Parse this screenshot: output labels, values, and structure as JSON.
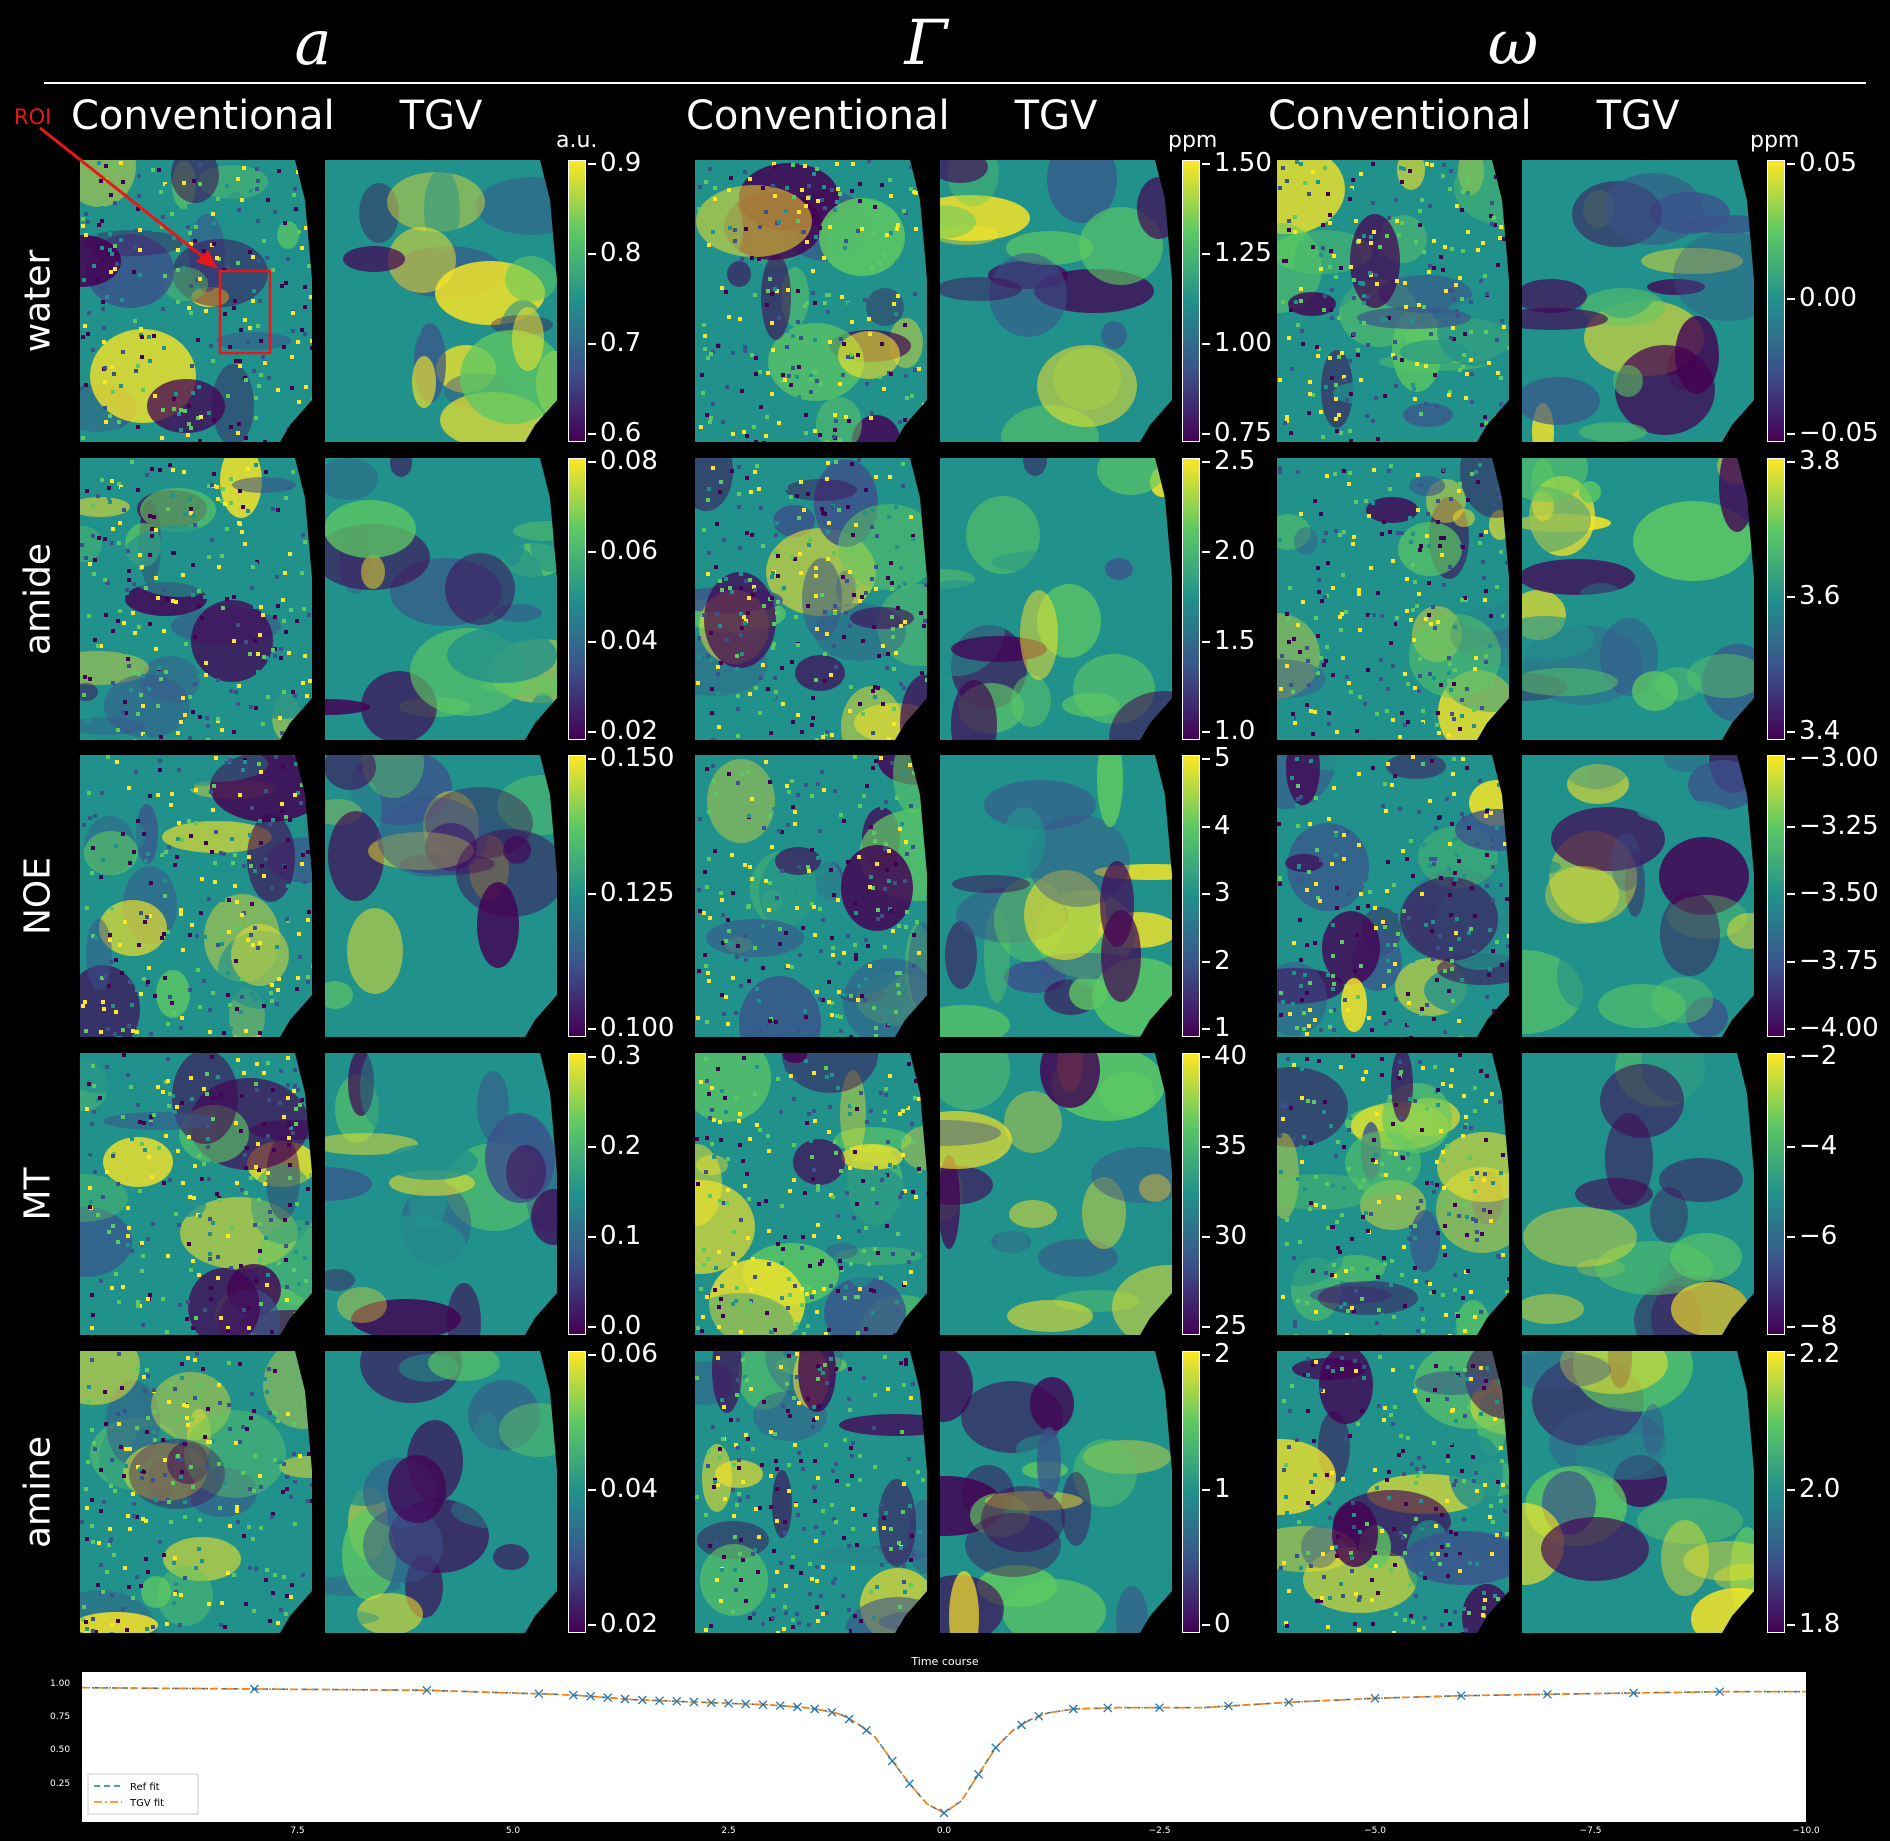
{
  "groups": [
    {
      "symbol": "a",
      "unit": "a.u."
    },
    {
      "symbol": "Γ",
      "unit": "ppm"
    },
    {
      "symbol": "ω",
      "unit": "ppm"
    }
  ],
  "column_headers": [
    "Conventional",
    "TGV"
  ],
  "roi_label": "ROI",
  "rows": [
    "water",
    "amide",
    "NOE",
    "MT",
    "amine"
  ],
  "colorbars": [
    [
      [
        "0.9",
        "0.8",
        "0.7",
        "0.6"
      ],
      [
        "1.50",
        "1.25",
        "1.00",
        "0.75"
      ],
      [
        "0.05",
        "0.00",
        "−0.05"
      ]
    ],
    [
      [
        "0.08",
        "0.06",
        "0.04",
        "0.02"
      ],
      [
        "2.5",
        "2.0",
        "1.5",
        "1.0"
      ],
      [
        "3.8",
        "3.6",
        "3.4"
      ]
    ],
    [
      [
        "0.150",
        "0.125",
        "0.100"
      ],
      [
        "5",
        "4",
        "3",
        "2",
        "1"
      ],
      [
        "−3.00",
        "−3.25",
        "−3.50",
        "−3.75",
        "−4.00"
      ]
    ],
    [
      [
        "0.3",
        "0.2",
        "0.1",
        "0.0"
      ],
      [
        "40",
        "35",
        "30",
        "25"
      ],
      [
        "−2",
        "−4",
        "−6",
        "−8"
      ]
    ],
    [
      [
        "0.06",
        "0.04",
        "0.02"
      ],
      [
        "2",
        "1",
        "0"
      ],
      [
        "2.2",
        "2.0",
        "1.8"
      ]
    ]
  ],
  "colormap": [
    "#440154",
    "#3b528b",
    "#21918c",
    "#5ec962",
    "#fde725"
  ],
  "chart_data": {
    "type": "line",
    "title": "Time course",
    "xlim": [
      10,
      -10
    ],
    "ylim": [
      0,
      1.05
    ],
    "x_ticks": [
      "7.5",
      "5.0",
      "2.5",
      "0.0",
      "−2.5",
      "−5.0",
      "−7.5",
      "−10.0"
    ],
    "x_tick_values": [
      7.5,
      5.0,
      2.5,
      0.0,
      -2.5,
      -5.0,
      -7.5,
      -10.0
    ],
    "y_ticks": [
      "1.00",
      "0.75",
      "0.50",
      "0.25"
    ],
    "y_tick_values": [
      1.0,
      0.75,
      0.5,
      0.25
    ],
    "legend_position": "lower-left",
    "series": [
      {
        "name": "Ref fit",
        "style": "dashed",
        "color": "#1f77b4"
      },
      {
        "name": "TGV fit",
        "style": "dashdot",
        "color": "#ff7f0e"
      }
    ],
    "x": [
      10.0,
      8.0,
      6.0,
      5.0,
      4.5,
      4.2,
      4.0,
      3.8,
      3.6,
      3.4,
      3.2,
      3.0,
      2.8,
      2.6,
      2.4,
      2.2,
      2.0,
      1.8,
      1.6,
      1.4,
      1.2,
      1.0,
      0.8,
      0.6,
      0.4,
      0.2,
      0.0,
      -0.2,
      -0.4,
      -0.6,
      -0.8,
      -1.0,
      -1.2,
      -1.5,
      -2.0,
      -2.5,
      -3.0,
      -3.5,
      -4.0,
      -5.0,
      -6.0,
      -7.0,
      -8.0,
      -9.0,
      -10.0
    ],
    "y": [
      0.97,
      0.96,
      0.95,
      0.93,
      0.92,
      0.91,
      0.9,
      0.89,
      0.88,
      0.875,
      0.87,
      0.865,
      0.86,
      0.855,
      0.85,
      0.845,
      0.84,
      0.83,
      0.82,
      0.8,
      0.77,
      0.7,
      0.6,
      0.42,
      0.25,
      0.1,
      0.03,
      0.12,
      0.32,
      0.52,
      0.65,
      0.73,
      0.78,
      0.81,
      0.82,
      0.82,
      0.82,
      0.84,
      0.86,
      0.89,
      0.91,
      0.92,
      0.93,
      0.94,
      0.94
    ],
    "markers_x": [
      8.0,
      6.0,
      4.7,
      4.3,
      4.1,
      3.9,
      3.7,
      3.5,
      3.3,
      3.1,
      2.9,
      2.7,
      2.5,
      2.3,
      2.1,
      1.9,
      1.7,
      1.5,
      1.3,
      1.1,
      0.9,
      0.6,
      0.4,
      0.0,
      -0.4,
      -0.6,
      -0.9,
      -1.1,
      -1.5,
      -1.9,
      -2.5,
      -3.3,
      -4.0,
      -5.0,
      -6.0,
      -7.0,
      -8.0,
      -9.0
    ]
  }
}
